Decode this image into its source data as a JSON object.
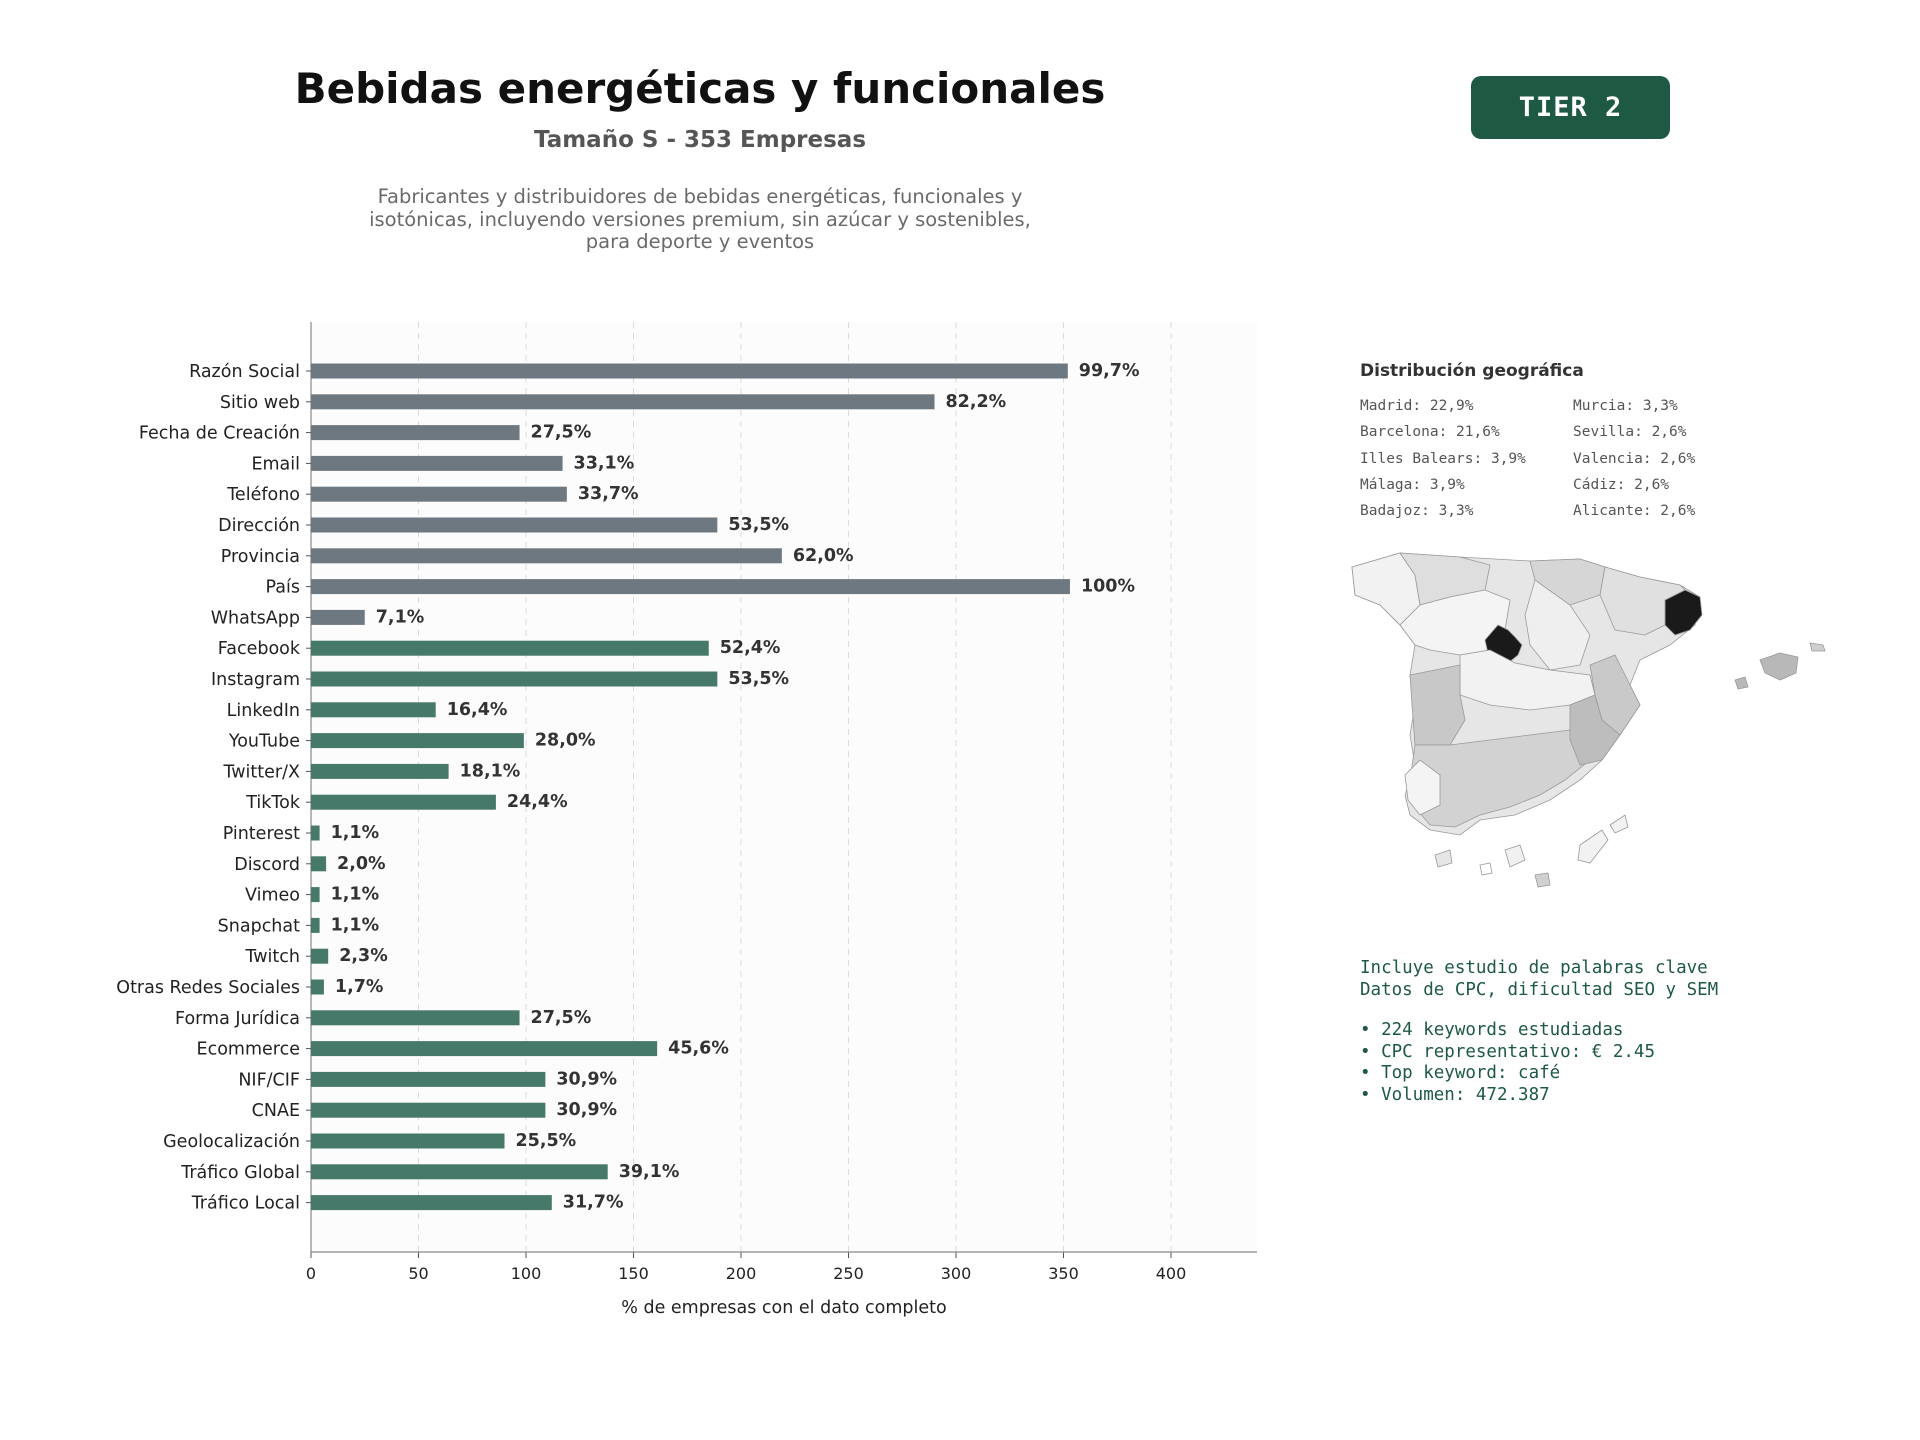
{
  "header": {
    "title": "Bebidas energéticas y funcionales",
    "subtitle": "Tamaño S - 353 Empresas",
    "description_lines": [
      "Fabricantes y distribuidores de bebidas energéticas, funcionales y",
      "isotónicas, incluyendo versiones premium, sin azúcar y sostenibles,",
      "para deporte y eventos"
    ],
    "tier_label": "TIER 2"
  },
  "colors": {
    "grey_bar": "#6e7880",
    "green_bar": "#47796a",
    "badge": "#1e5944",
    "map_highlight": "#1a1a1a"
  },
  "chart_data": {
    "type": "bar",
    "orientation": "horizontal",
    "xlabel": "% de empresas con el dato completo",
    "xlim": [
      0,
      440
    ],
    "xticks": [
      0,
      50,
      100,
      150,
      200,
      250,
      300,
      350,
      400
    ],
    "grid": "vertical dashed",
    "categories": [
      "Razón Social",
      "Sitio web",
      "Fecha de Creación",
      "Email",
      "Teléfono",
      "Dirección",
      "Provincia",
      "País",
      "WhatsApp",
      "Facebook",
      "Instagram",
      "LinkedIn",
      "YouTube",
      "Twitter/X",
      "TikTok",
      "Pinterest",
      "Discord",
      "Vimeo",
      "Snapchat",
      "Twitch",
      "Otras Redes Sociales",
      "Forma Jurídica",
      "Ecommerce",
      "NIF/CIF",
      "CNAE",
      "Geolocalización",
      "Tráfico Global",
      "Tráfico Local"
    ],
    "values": [
      352,
      290,
      97,
      117,
      119,
      189,
      219,
      353,
      25,
      185,
      189,
      58,
      99,
      64,
      86,
      4,
      7,
      4,
      4,
      8,
      6,
      97,
      161,
      109,
      109,
      90,
      138,
      112
    ],
    "labels": [
      "99,7%",
      "82,2%",
      "27,5%",
      "33,1%",
      "33,7%",
      "53,5%",
      "62,0%",
      "100%",
      "7,1%",
      "52,4%",
      "53,5%",
      "16,4%",
      "28,0%",
      "18,1%",
      "24,4%",
      "1,1%",
      "2,0%",
      "1,1%",
      "1,1%",
      "2,3%",
      "1,7%",
      "27,5%",
      "45,6%",
      "30,9%",
      "30,9%",
      "25,5%",
      "39,1%",
      "31,7%"
    ],
    "color_groups": [
      "grey",
      "grey",
      "grey",
      "grey",
      "grey",
      "grey",
      "grey",
      "grey",
      "grey",
      "green",
      "green",
      "green",
      "green",
      "green",
      "green",
      "green",
      "green",
      "green",
      "green",
      "green",
      "green",
      "green",
      "green",
      "green",
      "green",
      "green",
      "green",
      "green"
    ]
  },
  "geo": {
    "title": "Distribución geográfica",
    "items": [
      "Madrid: 22,9%",
      "Murcia: 3,3%",
      "Barcelona: 21,6%",
      "Sevilla: 2,6%",
      "Illes Balears: 3,9%",
      "Valencia: 2,6%",
      "Málaga: 3,9%",
      "Cádiz: 2,6%",
      "Badajoz: 3,3%",
      "Alicante: 2,6%"
    ]
  },
  "seo": {
    "line1": "Incluye estudio de palabras clave",
    "line2": "Datos de CPC, dificultad SEO y SEM",
    "bullets": [
      "• 224 keywords estudiadas",
      "• CPC representativo: € 2.45",
      "• Top keyword: café",
      "• Volumen: 472.387"
    ]
  }
}
